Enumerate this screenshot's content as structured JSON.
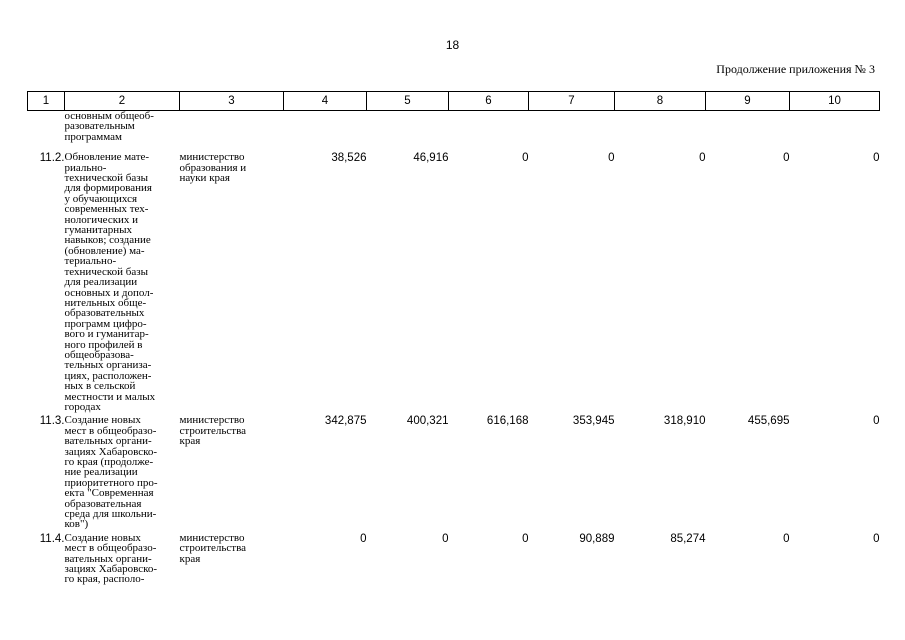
{
  "page": {
    "number": "18",
    "appendix_note": "Продолжение приложения № 3"
  },
  "table": {
    "headers": [
      "1",
      "2",
      "3",
      "4",
      "5",
      "6",
      "7",
      "8",
      "9",
      "10"
    ],
    "continued_text": "основным общеоб-\nразовательным\nпрограммам",
    "rows": [
      {
        "index": "11.2.",
        "name": "Обновление мате-\nриально-\nтехнической базы\nдля формирования\nу обучающихся\nсовременных тех-\nнологических и\nгуманитарных\nнавыков; создание\n(обновление) ма-\nтериально-\nтехнической базы\nдля реализации\nосновных и допол-\nнительных обще-\nобразовательных\nпрограмм цифро-\nвого и гуманитар-\nного профилей в\nобщеобразова-\nтельных организа-\nциях, расположен-\nных в сельской\nместности и малых\nгородах",
        "executor": "министерство\nобразования и\nнауки края",
        "values": [
          "38,526",
          "46,916",
          "0",
          "0",
          "0",
          "0",
          "0"
        ]
      },
      {
        "index": "11.3.",
        "name": "Создание новых\nмест в общеобразо-\nвательных органи-\nзациях Хабаровско-\nго края (продолже-\nние реализации\nприоритетного про-\nекта \"Современная\nобразовательная\nсреда для школьни-\nков\")",
        "executor": "министерство\nстроительства\nкрая",
        "values": [
          "342,875",
          "400,321",
          "616,168",
          "353,945",
          "318,910",
          "455,695",
          "0"
        ]
      },
      {
        "index": "11.4.",
        "name": "Создание новых\nмест в общеобразо-\nвательных органи-\nзациях Хабаровско-\nго края, располо-",
        "executor": "министерство\nстроительства\nкрая",
        "values": [
          "0",
          "0",
          "0",
          "90,889",
          "85,274",
          "0",
          "0"
        ]
      }
    ]
  }
}
